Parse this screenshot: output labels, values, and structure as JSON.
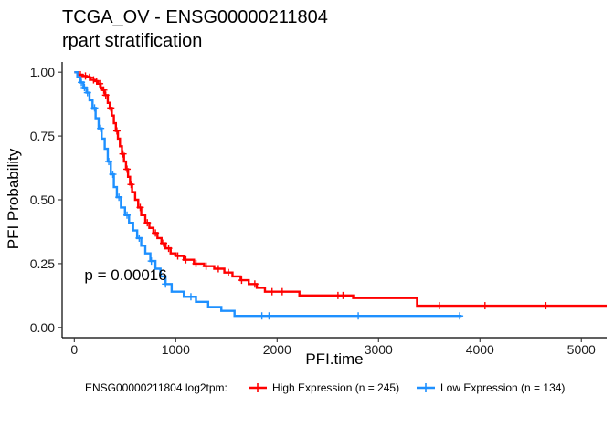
{
  "chart_data": {
    "type": "line",
    "title": "TCGA_OV - ENSG00000211804",
    "subtitle": "rpart stratification",
    "xlabel": "PFI.time",
    "ylabel": "PFI Probability",
    "xlim": [
      -120,
      5250
    ],
    "ylim": [
      -0.04,
      1.04
    ],
    "x_ticks": [
      0,
      1000,
      2000,
      3000,
      4000,
      5000
    ],
    "y_ticks": [
      0.0,
      0.25,
      0.5,
      0.75,
      1.0
    ],
    "x_tick_labels": [
      "0",
      "1000",
      "2000",
      "3000",
      "4000",
      "5000"
    ],
    "y_tick_labels": [
      "0.00",
      "0.25",
      "0.50",
      "0.75",
      "1.00"
    ],
    "grid": false,
    "annotation": "p = 0.00016",
    "annotation_pos": {
      "x": 100,
      "y": 0.185
    },
    "legend": {
      "title": "ENSG00000211804 log2tpm:",
      "placement": "bottom"
    },
    "series": [
      {
        "name": "High Expression (n = 245)",
        "color": "#ff0000",
        "steps": [
          [
            0,
            1.0
          ],
          [
            40,
            0.99
          ],
          [
            80,
            0.985
          ],
          [
            120,
            0.98
          ],
          [
            160,
            0.97
          ],
          [
            200,
            0.965
          ],
          [
            230,
            0.955
          ],
          [
            260,
            0.94
          ],
          [
            280,
            0.93
          ],
          [
            300,
            0.91
          ],
          [
            330,
            0.88
          ],
          [
            350,
            0.86
          ],
          [
            370,
            0.83
          ],
          [
            390,
            0.8
          ],
          [
            410,
            0.77
          ],
          [
            430,
            0.74
          ],
          [
            450,
            0.71
          ],
          [
            470,
            0.68
          ],
          [
            490,
            0.65
          ],
          [
            510,
            0.62
          ],
          [
            530,
            0.59
          ],
          [
            550,
            0.56
          ],
          [
            570,
            0.53
          ],
          [
            600,
            0.5
          ],
          [
            630,
            0.47
          ],
          [
            660,
            0.44
          ],
          [
            700,
            0.41
          ],
          [
            740,
            0.39
          ],
          [
            780,
            0.37
          ],
          [
            820,
            0.35
          ],
          [
            860,
            0.33
          ],
          [
            900,
            0.31
          ],
          [
            950,
            0.29
          ],
          [
            1000,
            0.28
          ],
          [
            1080,
            0.265
          ],
          [
            1180,
            0.25
          ],
          [
            1280,
            0.24
          ],
          [
            1380,
            0.23
          ],
          [
            1480,
            0.215
          ],
          [
            1560,
            0.2
          ],
          [
            1640,
            0.185
          ],
          [
            1720,
            0.17
          ],
          [
            1800,
            0.155
          ],
          [
            1880,
            0.14
          ],
          [
            2220,
            0.125
          ],
          [
            2750,
            0.115
          ],
          [
            3380,
            0.085
          ],
          [
            5250,
            0.085
          ]
        ],
        "censor_x": [
          60,
          110,
          150,
          190,
          220,
          250,
          290,
          310,
          360,
          420,
          480,
          520,
          560,
          650,
          720,
          800,
          880,
          930,
          1020,
          1100,
          1200,
          1300,
          1420,
          1520,
          1650,
          1780,
          1950,
          2050,
          2600,
          2650,
          3600,
          4050,
          4650
        ]
      },
      {
        "name": "Low Expression (n = 134)",
        "color": "#1e90ff",
        "steps": [
          [
            0,
            1.0
          ],
          [
            30,
            0.98
          ],
          [
            60,
            0.96
          ],
          [
            90,
            0.94
          ],
          [
            120,
            0.92
          ],
          [
            150,
            0.89
          ],
          [
            180,
            0.86
          ],
          [
            210,
            0.82
          ],
          [
            240,
            0.78
          ],
          [
            270,
            0.74
          ],
          [
            300,
            0.7
          ],
          [
            330,
            0.65
          ],
          [
            360,
            0.6
          ],
          [
            390,
            0.55
          ],
          [
            420,
            0.51
          ],
          [
            460,
            0.47
          ],
          [
            500,
            0.44
          ],
          [
            540,
            0.41
          ],
          [
            580,
            0.38
          ],
          [
            620,
            0.35
          ],
          [
            660,
            0.32
          ],
          [
            700,
            0.29
          ],
          [
            750,
            0.26
          ],
          [
            800,
            0.23
          ],
          [
            850,
            0.2
          ],
          [
            900,
            0.17
          ],
          [
            960,
            0.14
          ],
          [
            1080,
            0.12
          ],
          [
            1200,
            0.1
          ],
          [
            1320,
            0.08
          ],
          [
            1450,
            0.065
          ],
          [
            1580,
            0.045
          ],
          [
            3820,
            0.045
          ]
        ],
        "censor_x": [
          70,
          100,
          130,
          200,
          260,
          340,
          380,
          440,
          520,
          640,
          760,
          900,
          1150,
          1850,
          1920,
          2800,
          3800
        ]
      }
    ]
  }
}
